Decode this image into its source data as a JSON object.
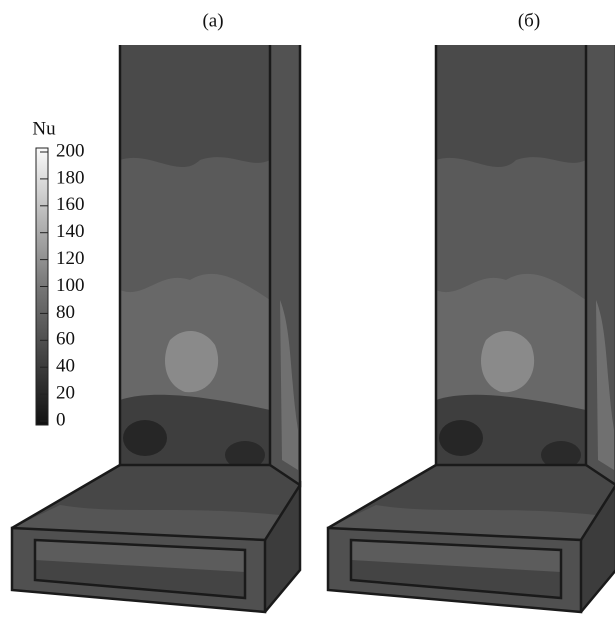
{
  "panels": [
    {
      "label": "(a)"
    },
    {
      "label": "(б)"
    }
  ],
  "colorbar": {
    "title": "Nu",
    "range": [
      0,
      200
    ],
    "ticks": [
      0,
      20,
      40,
      60,
      80,
      100,
      120,
      140,
      160,
      180,
      200
    ]
  }
}
